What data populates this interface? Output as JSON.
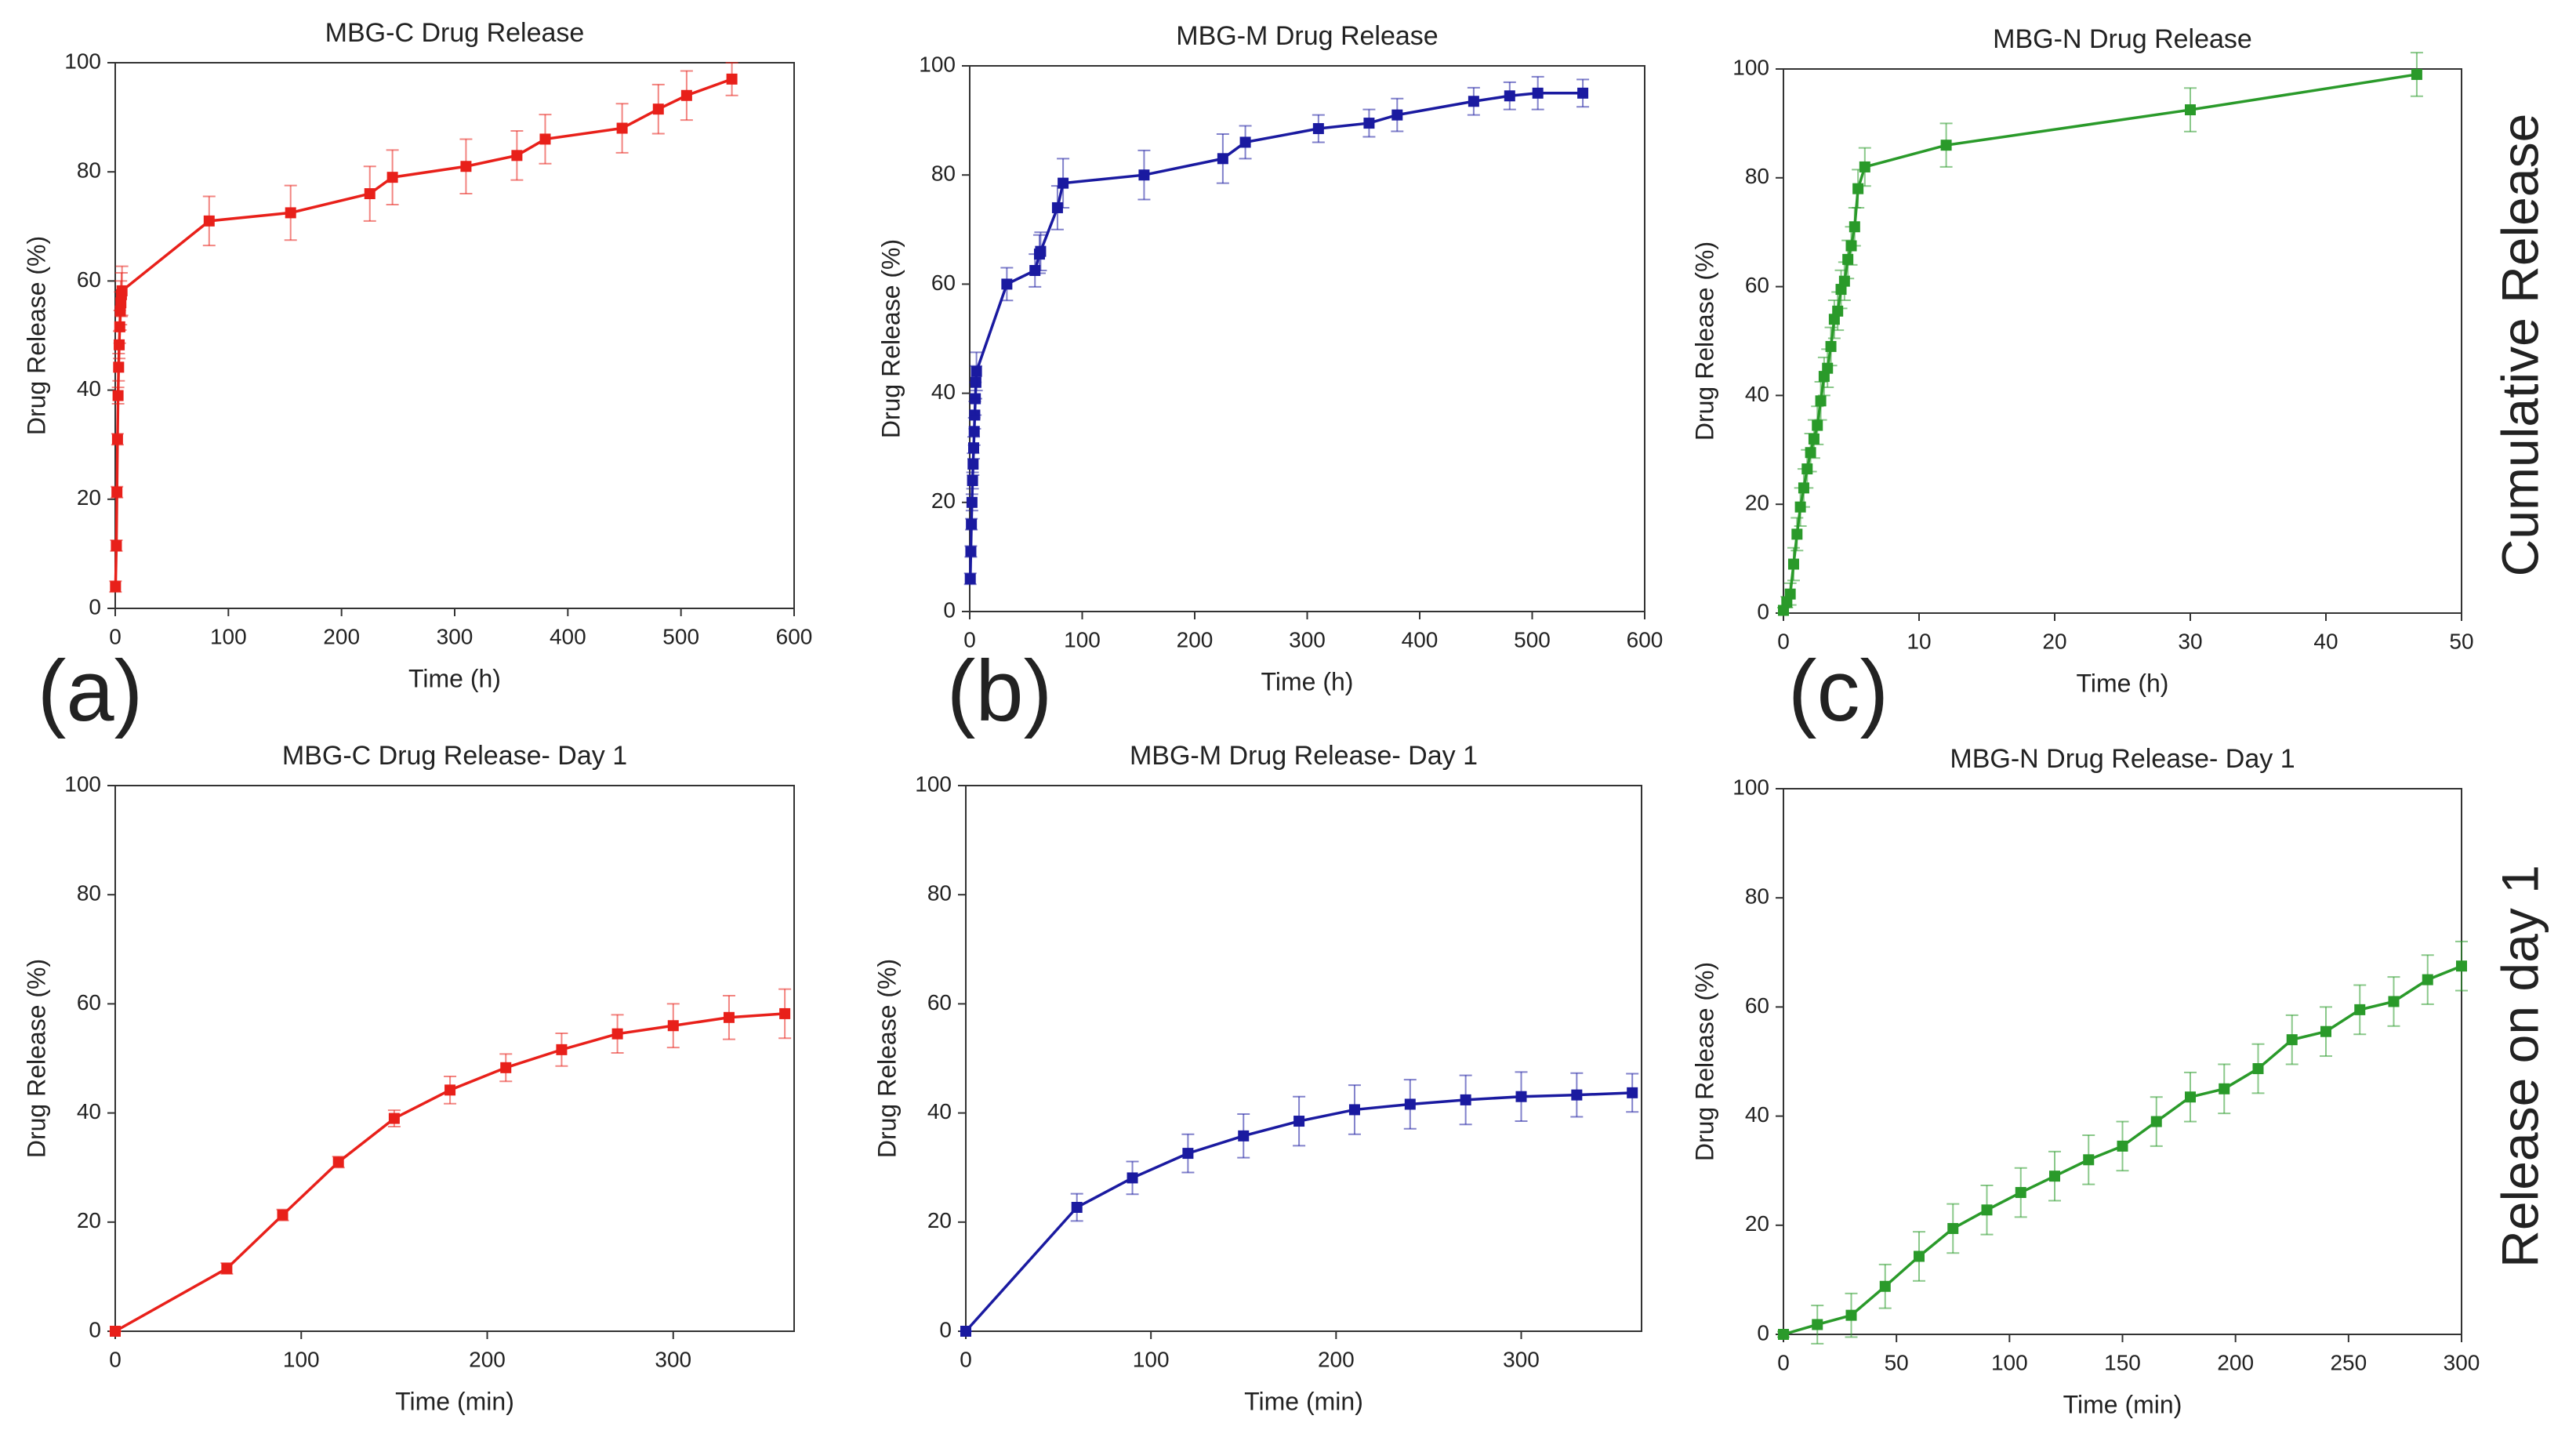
{
  "panel_labels": [
    "(a)",
    "(b)",
    "(c)"
  ],
  "row_labels": [
    "Cumulative Release",
    "Release on day 1"
  ],
  "chart_data": [
    {
      "type": "line",
      "title": "MBG-C Drug Release",
      "xlabel": "Time (h)",
      "ylabel": "Drug Release (%)",
      "color": "#e8201a",
      "x": [
        0.25,
        1,
        1.5,
        2,
        2.5,
        3,
        3.5,
        4,
        4.5,
        5,
        5.5,
        6,
        83,
        155,
        225,
        245,
        310,
        355,
        380,
        448,
        480,
        505,
        545
      ],
      "values": [
        4,
        11.5,
        21.3,
        31,
        39,
        44.2,
        48.3,
        51.6,
        54.5,
        56,
        57.5,
        58.2,
        71,
        72.5,
        76,
        79,
        81,
        83,
        86,
        88,
        91.5,
        94,
        97
      ],
      "errors": [
        1,
        1,
        1,
        1,
        1.5,
        2.5,
        2.5,
        3,
        3.5,
        4,
        4,
        4.5,
        4.5,
        5,
        5,
        5,
        5,
        4.5,
        4.5,
        4.5,
        4.5,
        4.5,
        3
      ],
      "xlim": [
        0,
        600
      ],
      "ylim": [
        0,
        100
      ],
      "xticks": [
        0,
        100,
        200,
        300,
        400,
        500,
        600
      ],
      "yticks": [
        0,
        20,
        40,
        60,
        80,
        100
      ]
    },
    {
      "type": "line",
      "title": "MBG-M Drug Release",
      "xlabel": "Time (h)",
      "ylabel": "Drug Release (%)",
      "color": "#1a1aa0",
      "x": [
        0.5,
        1,
        1.5,
        2,
        2.5,
        3,
        3.5,
        4,
        4.5,
        5,
        5.5,
        6,
        33,
        58,
        62,
        63,
        78,
        83,
        155,
        225,
        245,
        310,
        355,
        380,
        448,
        480,
        505,
        545
      ],
      "values": [
        6,
        11,
        16,
        20,
        24,
        27,
        30,
        33,
        36,
        39,
        42,
        44,
        60,
        62.5,
        65.5,
        66,
        74,
        78.5,
        80,
        83,
        86,
        88.5,
        89.5,
        91,
        93.5,
        94.5,
        95,
        95
      ],
      "errors": [
        1,
        1,
        1,
        1.5,
        1.5,
        2,
        2,
        2.5,
        2.5,
        3,
        3,
        3.5,
        3,
        3,
        3.5,
        3.5,
        4,
        4.5,
        4.5,
        4.5,
        3,
        2.5,
        2.5,
        3,
        2.5,
        2.5,
        3,
        2.5
      ],
      "xlim": [
        0,
        600
      ],
      "ylim": [
        0,
        100
      ],
      "xticks": [
        0,
        100,
        200,
        300,
        400,
        500,
        600
      ],
      "yticks": [
        0,
        20,
        40,
        60,
        80,
        100
      ]
    },
    {
      "type": "line",
      "title": "MBG-N Drug Release",
      "xlabel": "Time (h)",
      "ylabel": "Drug Release (%)",
      "color": "#2a9a2a",
      "x": [
        0,
        0.25,
        0.5,
        0.75,
        1,
        1.25,
        1.5,
        1.75,
        2,
        2.25,
        2.5,
        2.75,
        3,
        3.25,
        3.5,
        3.75,
        4,
        4.25,
        4.5,
        4.75,
        5,
        5.25,
        5.5,
        6,
        12,
        30,
        46.7
      ],
      "values": [
        0.5,
        2,
        3.5,
        9,
        14.5,
        19.5,
        23,
        26.5,
        29.5,
        32,
        34.5,
        39,
        43.5,
        45,
        49,
        54,
        55.5,
        59.5,
        61,
        65,
        67.5,
        71,
        78,
        82,
        86,
        92.5,
        99
      ],
      "errors": [
        0.5,
        1,
        2,
        3,
        3,
        3.5,
        3.5,
        3.5,
        3.5,
        3.5,
        3.5,
        3.5,
        3.5,
        3.5,
        3.5,
        3.5,
        3.5,
        3.5,
        3.5,
        3.5,
        3.5,
        3.5,
        3.5,
        3.5,
        4,
        4,
        4
      ],
      "xlim": [
        0,
        50
      ],
      "ylim": [
        0,
        100
      ],
      "xticks": [
        0,
        10,
        20,
        30,
        40,
        50
      ],
      "yticks": [
        0,
        20,
        40,
        60,
        80,
        100
      ]
    },
    {
      "type": "line",
      "title": "MBG-C Drug Release- Day 1",
      "xlabel": "Time (min)",
      "ylabel": "Drug Release (%)",
      "color": "#e8201a",
      "x": [
        0,
        60,
        90,
        120,
        150,
        180,
        210,
        240,
        270,
        300,
        330,
        360
      ],
      "values": [
        0,
        11.5,
        21.3,
        31,
        39,
        44.2,
        48.3,
        51.6,
        54.5,
        56,
        57.5,
        58.2
      ],
      "errors": [
        0,
        1,
        1,
        1,
        1.5,
        2.5,
        2.5,
        3,
        3.5,
        4,
        4,
        4.5
      ],
      "xlim": [
        0,
        365
      ],
      "ylim": [
        0,
        100
      ],
      "xticks": [
        0,
        100,
        200,
        300
      ],
      "yticks": [
        0,
        20,
        40,
        60,
        80,
        100
      ]
    },
    {
      "type": "line",
      "title": "MBG-M Drug Release- Day 1",
      "xlabel": "Time (min)",
      "ylabel": "Drug Release (%)",
      "color": "#1a1aa0",
      "x": [
        0,
        60,
        90,
        120,
        150,
        180,
        210,
        240,
        270,
        300,
        330,
        360
      ],
      "values": [
        0,
        22.7,
        28.1,
        32.6,
        35.8,
        38.5,
        40.6,
        41.6,
        42.4,
        43,
        43.3,
        43.7
      ],
      "errors": [
        0,
        2.5,
        3,
        3.5,
        4,
        4.5,
        4.5,
        4.5,
        4.5,
        4.5,
        4,
        3.5
      ],
      "xlim": [
        0,
        365
      ],
      "ylim": [
        0,
        100
      ],
      "xticks": [
        0,
        100,
        200,
        300
      ],
      "yticks": [
        0,
        20,
        40,
        60,
        80,
        100
      ]
    },
    {
      "type": "line",
      "title": "MBG-N Drug Release- Day 1",
      "xlabel": "Time (min)",
      "ylabel": "Drug Release (%)",
      "color": "#2a9a2a",
      "x": [
        0,
        15,
        30,
        45,
        60,
        75,
        90,
        105,
        120,
        135,
        150,
        165,
        180,
        195,
        210,
        225,
        240,
        255,
        270,
        285,
        300
      ],
      "values": [
        0,
        1.8,
        3.5,
        8.8,
        14.3,
        19.4,
        22.8,
        26,
        29,
        32,
        34.5,
        39,
        43.5,
        45,
        48.7,
        54,
        55.5,
        59.5,
        61,
        65,
        67.5
      ],
      "errors": [
        0.5,
        3.5,
        4,
        4,
        4.5,
        4.5,
        4.5,
        4.5,
        4.5,
        4.5,
        4.5,
        4.5,
        4.5,
        4.5,
        4.5,
        4.5,
        4.5,
        4.5,
        4.5,
        4.5,
        4.5
      ],
      "xlim": [
        0,
        300
      ],
      "ylim": [
        0,
        100
      ],
      "xticks": [
        0,
        50,
        100,
        150,
        200,
        250,
        300
      ],
      "yticks": [
        0,
        20,
        40,
        60,
        80,
        100
      ]
    }
  ]
}
